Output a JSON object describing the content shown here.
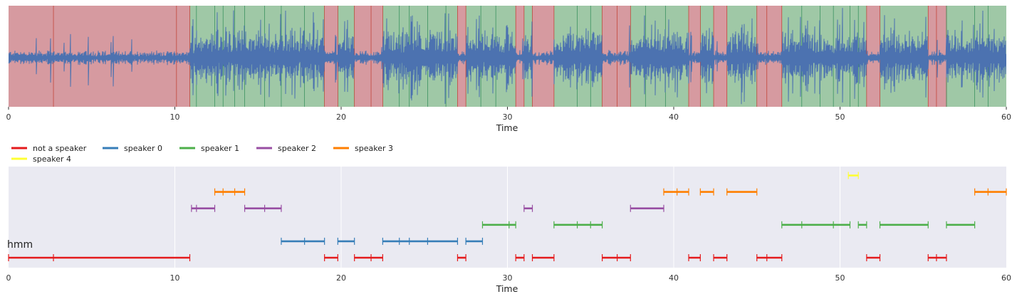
{
  "chart_data": [
    {
      "type": "area",
      "description_kind": "waveform",
      "xlabel": "Time",
      "ylabel": "",
      "xlim": [
        0,
        60
      ],
      "xticks": [
        "0",
        "10",
        "20",
        "30",
        "40",
        "50",
        "60"
      ],
      "grid": false,
      "waveform_color": "#4c72b0",
      "background_regions": {
        "nonspeech_color": "#d69aa0",
        "speech_color": "#9fc8a6",
        "nonspeech_line_color": "#c0392b",
        "speech_line_color": "#2e8b57",
        "speech": [
          [
            10.9,
            19.0
          ],
          [
            19.8,
            20.8
          ],
          [
            22.5,
            27.0
          ],
          [
            27.5,
            30.5
          ],
          [
            31.0,
            31.5
          ],
          [
            32.8,
            35.7
          ],
          [
            37.4,
            40.9
          ],
          [
            41.6,
            42.4
          ],
          [
            43.2,
            45.0
          ],
          [
            46.5,
            51.6
          ],
          [
            52.4,
            55.3
          ]
        ],
        "nonspeech": [
          [
            0,
            10.9
          ],
          [
            19.0,
            19.8
          ],
          [
            20.8,
            22.5
          ],
          [
            27.0,
            27.5
          ],
          [
            30.5,
            31.0
          ],
          [
            31.5,
            32.8
          ],
          [
            35.7,
            37.4
          ],
          [
            40.9,
            41.6
          ],
          [
            42.4,
            43.2
          ],
          [
            45.0,
            46.5
          ],
          [
            51.6,
            52.4
          ],
          [
            55.3,
            56.4
          ]
        ],
        "tail_speech": [
          [
            56.4,
            60.0
          ]
        ],
        "speech_boundaries": [
          11.3,
          12.4,
          12.9,
          13.6,
          14.2,
          15.4,
          16.4,
          17.8,
          23.5,
          24.1,
          25.2,
          26.3,
          28.4,
          29.3,
          34.2,
          35.0,
          38.3,
          39.5,
          47.7,
          48.8,
          49.6,
          50.6,
          51.1,
          56.4,
          58.1,
          58.9
        ],
        "nonspeech_boundaries": [
          2.7,
          10.1,
          21.8,
          36.6,
          45.6,
          55.8
        ]
      }
    },
    {
      "type": "line",
      "description_kind": "speaker-timeline",
      "xlabel": "Time",
      "ylabel": "",
      "xlim": [
        0,
        60
      ],
      "xticks": [
        "0",
        "10",
        "20",
        "30",
        "40",
        "50",
        "60"
      ],
      "grid": true,
      "background_color": "#eaeaf2",
      "legend": {
        "placement": "top-left",
        "ncol": 5
      },
      "annotation": "hmm",
      "series": [
        {
          "name": "not a speaker",
          "color": "#e41a1c",
          "row": 0,
          "segments": [
            [
              0,
              10.9
            ],
            [
              19.0,
              19.8
            ],
            [
              20.8,
              22.5
            ],
            [
              27.0,
              27.5
            ],
            [
              30.5,
              31.0
            ],
            [
              31.5,
              32.8
            ],
            [
              35.7,
              37.4
            ],
            [
              40.9,
              41.6
            ],
            [
              42.4,
              43.2
            ],
            [
              45.0,
              46.5
            ],
            [
              51.6,
              52.4
            ],
            [
              55.3,
              56.4
            ]
          ],
          "inner_ticks": [
            2.7,
            21.8,
            36.6,
            45.6,
            55.8
          ]
        },
        {
          "name": "speaker 0",
          "color": "#377eb8",
          "row": 1,
          "segments": [
            [
              16.4,
              19.0
            ],
            [
              19.8,
              20.8
            ],
            [
              22.5,
              27.0
            ],
            [
              27.5,
              28.5
            ]
          ],
          "inner_ticks": [
            17.8,
            23.5,
            24.1,
            25.2
          ]
        },
        {
          "name": "speaker 1",
          "color": "#4daf4a",
          "row": 2,
          "segments": [
            [
              28.5,
              30.5
            ],
            [
              32.8,
              35.7
            ],
            [
              46.5,
              50.6
            ],
            [
              51.1,
              51.6
            ],
            [
              52.4,
              55.3
            ],
            [
              56.4,
              58.1
            ]
          ],
          "inner_ticks": [
            30.1,
            34.2,
            35.0,
            47.7,
            49.6
          ]
        },
        {
          "name": "speaker 2",
          "color": "#984ea3",
          "row": 3,
          "segments": [
            [
              11.0,
              12.4
            ],
            [
              14.2,
              16.4
            ],
            [
              31.0,
              31.5
            ],
            [
              37.4,
              39.4
            ]
          ],
          "inner_ticks": [
            11.3,
            15.4
          ]
        },
        {
          "name": "speaker 3",
          "color": "#ff7f00",
          "row": 4,
          "segments": [
            [
              12.4,
              14.2
            ],
            [
              39.4,
              40.9
            ],
            [
              41.6,
              42.4
            ],
            [
              43.2,
              45.0
            ],
            [
              58.1,
              60.0
            ]
          ],
          "inner_ticks": [
            12.9,
            13.6,
            40.2,
            58.9
          ]
        },
        {
          "name": "speaker 4",
          "color": "#ffff33",
          "row": 5,
          "segments": [
            [
              50.5,
              51.1
            ]
          ],
          "inner_ticks": []
        }
      ]
    }
  ]
}
